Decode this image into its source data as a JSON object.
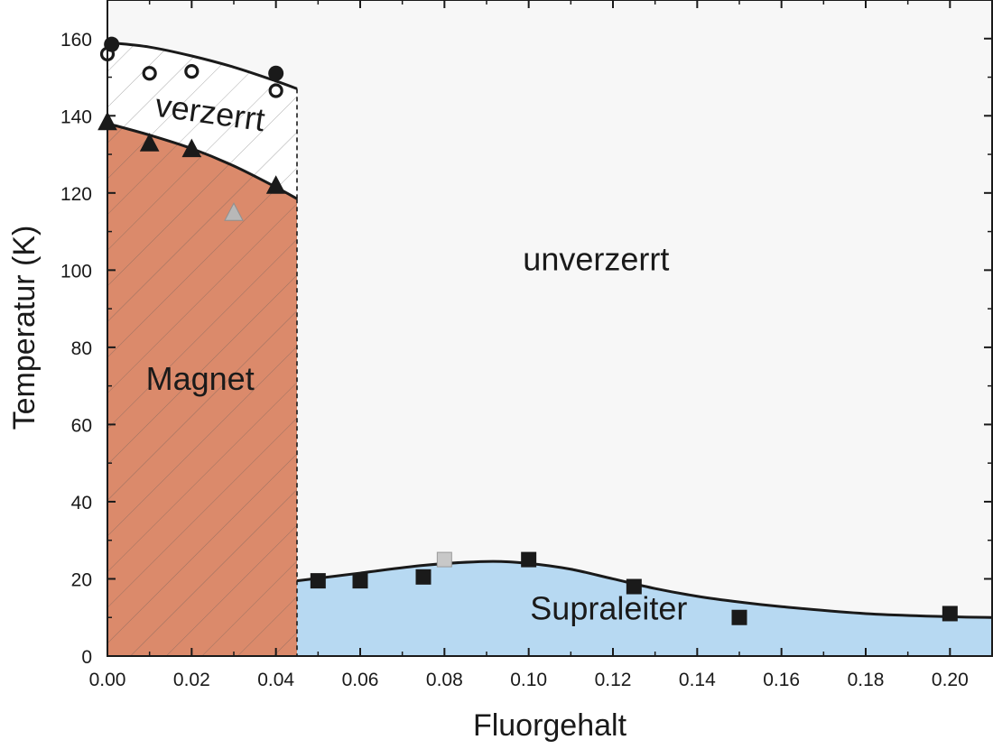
{
  "chart_data": {
    "type": "scatter",
    "xlabel": "Fluorgehalt",
    "ylabel": "Temperatur (K)",
    "xlim": [
      0,
      0.21
    ],
    "ylim": [
      0,
      160
    ],
    "x_ticks": [
      0.0,
      0.02,
      0.04,
      0.06,
      0.08,
      0.1,
      0.12,
      0.14,
      0.16,
      0.18,
      0.2
    ],
    "x_tick_labels": [
      "0.00",
      "0.02",
      "0.04",
      "0.06",
      "0.08",
      "0.10",
      "0.12",
      "0.14",
      "0.16",
      "0.18",
      "0.20"
    ],
    "y_ticks": [
      0,
      20,
      40,
      60,
      80,
      100,
      120,
      140,
      160
    ],
    "y_tick_labels": [
      "0",
      "20",
      "40",
      "60",
      "80",
      "100",
      "120",
      "140",
      "160"
    ],
    "grid": false,
    "phase_boundary_x": 0.045,
    "regions": [
      {
        "label": "verzerrt",
        "color": "#ffffff",
        "hatched": true,
        "label_x": 0.024,
        "label_y": 138
      },
      {
        "label": "Magnet",
        "color": "#db8a6b",
        "hatched": true,
        "label_x": 0.022,
        "label_y": 69
      },
      {
        "label": "unverzerrt",
        "color": "#f7f7f7",
        "hatched": false,
        "label_x": 0.116,
        "label_y": 100
      },
      {
        "label": "Supraleiter",
        "color": "#b7d9f2",
        "hatched": false,
        "label_x": 0.119,
        "label_y": 9.5
      }
    ],
    "boundaries": [
      {
        "name": "upper",
        "x": [
          0.0,
          0.01,
          0.02,
          0.03,
          0.04,
          0.045
        ],
        "y": [
          159,
          157.8,
          155.5,
          152.6,
          149,
          147
        ]
      },
      {
        "name": "lower",
        "x": [
          0.0,
          0.01,
          0.02,
          0.03,
          0.04,
          0.045
        ],
        "y": [
          138,
          135,
          131.5,
          127,
          121.5,
          118.5
        ]
      },
      {
        "name": "super",
        "x": [
          0.045,
          0.06,
          0.075,
          0.09,
          0.1,
          0.11,
          0.12,
          0.13,
          0.14,
          0.15,
          0.16,
          0.18,
          0.2,
          0.21
        ],
        "y": [
          19.5,
          21.5,
          23.5,
          24.5,
          24.0,
          22.5,
          20.0,
          17.5,
          15.5,
          14.0,
          12.8,
          11.0,
          10.2,
          10.0
        ]
      }
    ],
    "series": [
      {
        "marker": "circle-open",
        "color": "#1a1a1a",
        "points": [
          [
            0.0,
            156
          ],
          [
            0.01,
            151
          ],
          [
            0.02,
            151.5
          ],
          [
            0.04,
            146.5
          ]
        ]
      },
      {
        "marker": "circle-filled",
        "color": "#1a1a1a",
        "points": [
          [
            0.001,
            158.5
          ],
          [
            0.04,
            151
          ]
        ]
      },
      {
        "marker": "triangle",
        "color": "#1a1a1a",
        "points": [
          [
            0.0,
            138.5
          ],
          [
            0.01,
            133
          ],
          [
            0.02,
            131.5
          ],
          [
            0.04,
            122
          ]
        ]
      },
      {
        "marker": "triangle",
        "color": "#b8b8b8",
        "points": [
          [
            0.03,
            115
          ]
        ]
      },
      {
        "marker": "square",
        "color": "#1a1a1a",
        "points": [
          [
            0.05,
            19.5
          ],
          [
            0.06,
            19.5
          ],
          [
            0.075,
            20.5
          ],
          [
            0.1,
            25
          ],
          [
            0.125,
            18
          ],
          [
            0.15,
            10
          ],
          [
            0.2,
            11
          ]
        ]
      },
      {
        "marker": "square",
        "color": "#c8c8c8",
        "points": [
          [
            0.08,
            25
          ]
        ]
      }
    ]
  }
}
